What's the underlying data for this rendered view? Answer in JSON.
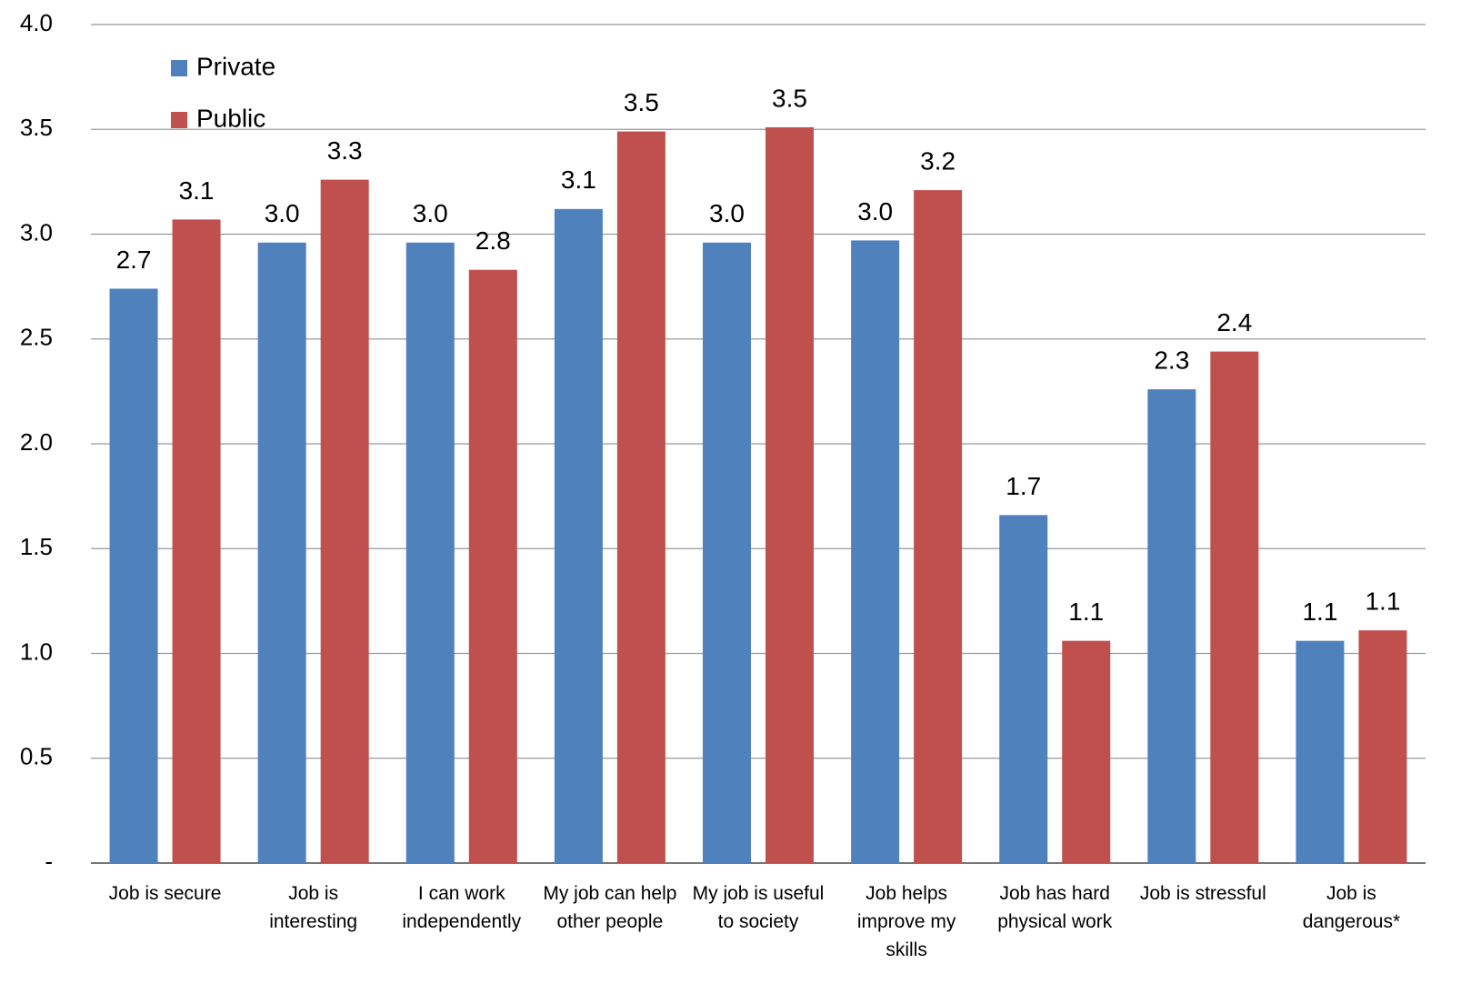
{
  "chart_data": {
    "type": "bar",
    "categories": [
      "Job is secure",
      "Job is interesting",
      "I can work independently",
      "My job can help other people",
      "My job is useful to society",
      "Job helps improve my skills",
      "Job has hard physical work",
      "Job is stressful",
      "Job is dangerous*"
    ],
    "series": [
      {
        "name": "Private",
        "color": "#4f81bd",
        "values": [
          2.74,
          2.96,
          2.96,
          3.12,
          2.96,
          2.97,
          1.66,
          2.26,
          1.06
        ],
        "value_labels": [
          "2.7",
          "3.0",
          "3.0",
          "3.1",
          "3.0",
          "3.0",
          "1.7",
          "2.3",
          "1.1"
        ]
      },
      {
        "name": "Public",
        "color": "#c0504d",
        "values": [
          3.07,
          3.26,
          2.83,
          3.49,
          3.51,
          3.21,
          1.06,
          2.44,
          1.11
        ],
        "value_labels": [
          "3.1",
          "3.3",
          "2.8",
          "3.5",
          "3.5",
          "3.2",
          "1.1",
          "2.4",
          "1.1"
        ]
      }
    ],
    "ylim": [
      0,
      4
    ],
    "yticks": [
      {
        "value": 0,
        "label": "-"
      },
      {
        "value": 0.5,
        "label": "0.5"
      },
      {
        "value": 1,
        "label": "1.0"
      },
      {
        "value": 1.5,
        "label": "1.5"
      },
      {
        "value": 2,
        "label": "2.0"
      },
      {
        "value": 2.5,
        "label": "2.5"
      },
      {
        "value": 3,
        "label": "3.0"
      },
      {
        "value": 3.5,
        "label": "3.5"
      },
      {
        "value": 4,
        "label": "4.0"
      }
    ],
    "grid": true,
    "legend": "top-left"
  }
}
